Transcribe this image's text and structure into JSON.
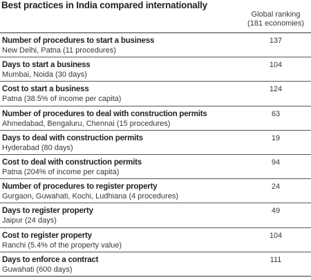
{
  "title": "Best practices in India compared internationally",
  "column_header": {
    "line1": "Global ranking",
    "line2": "(181 economies)"
  },
  "rows": [
    {
      "indicator": "Number of procedures to start a business",
      "location": "New Delhi, Patna (11 procedures)",
      "rank": "137"
    },
    {
      "indicator": "Days to start a business",
      "location": "Mumbai, Noida  (30 days)",
      "rank": "104"
    },
    {
      "indicator": "Cost to start a business",
      "location": "Patna (38.5% of income per capita)",
      "rank": "124"
    },
    {
      "indicator": "Number of procedures to deal with construction permits",
      "location": "Ahmedabad, Bengaluru, Chennai (15 procedures)",
      "rank": "63"
    },
    {
      "indicator": "Days to deal with construction permits",
      "location": "Hyderabad (80 days)",
      "rank": "19"
    },
    {
      "indicator": "Cost to deal with construction permits",
      "location": "Patna (204% of income per capita)",
      "rank": "94"
    },
    {
      "indicator": "Number of procedures to register property",
      "location": "Gurgaon, Guwahati, Kochi, Ludhiana (4 procedures)",
      "rank": "24"
    },
    {
      "indicator": "Days to register property",
      "location": "Jaipur (24 days)",
      "rank": "49"
    },
    {
      "indicator": "Cost to register property",
      "location": "Ranchi (5.4% of the property value)",
      "rank": "104"
    },
    {
      "indicator": "Days to enforce a contract",
      "location": "Guwahati (600 days)",
      "rank": "111"
    }
  ]
}
